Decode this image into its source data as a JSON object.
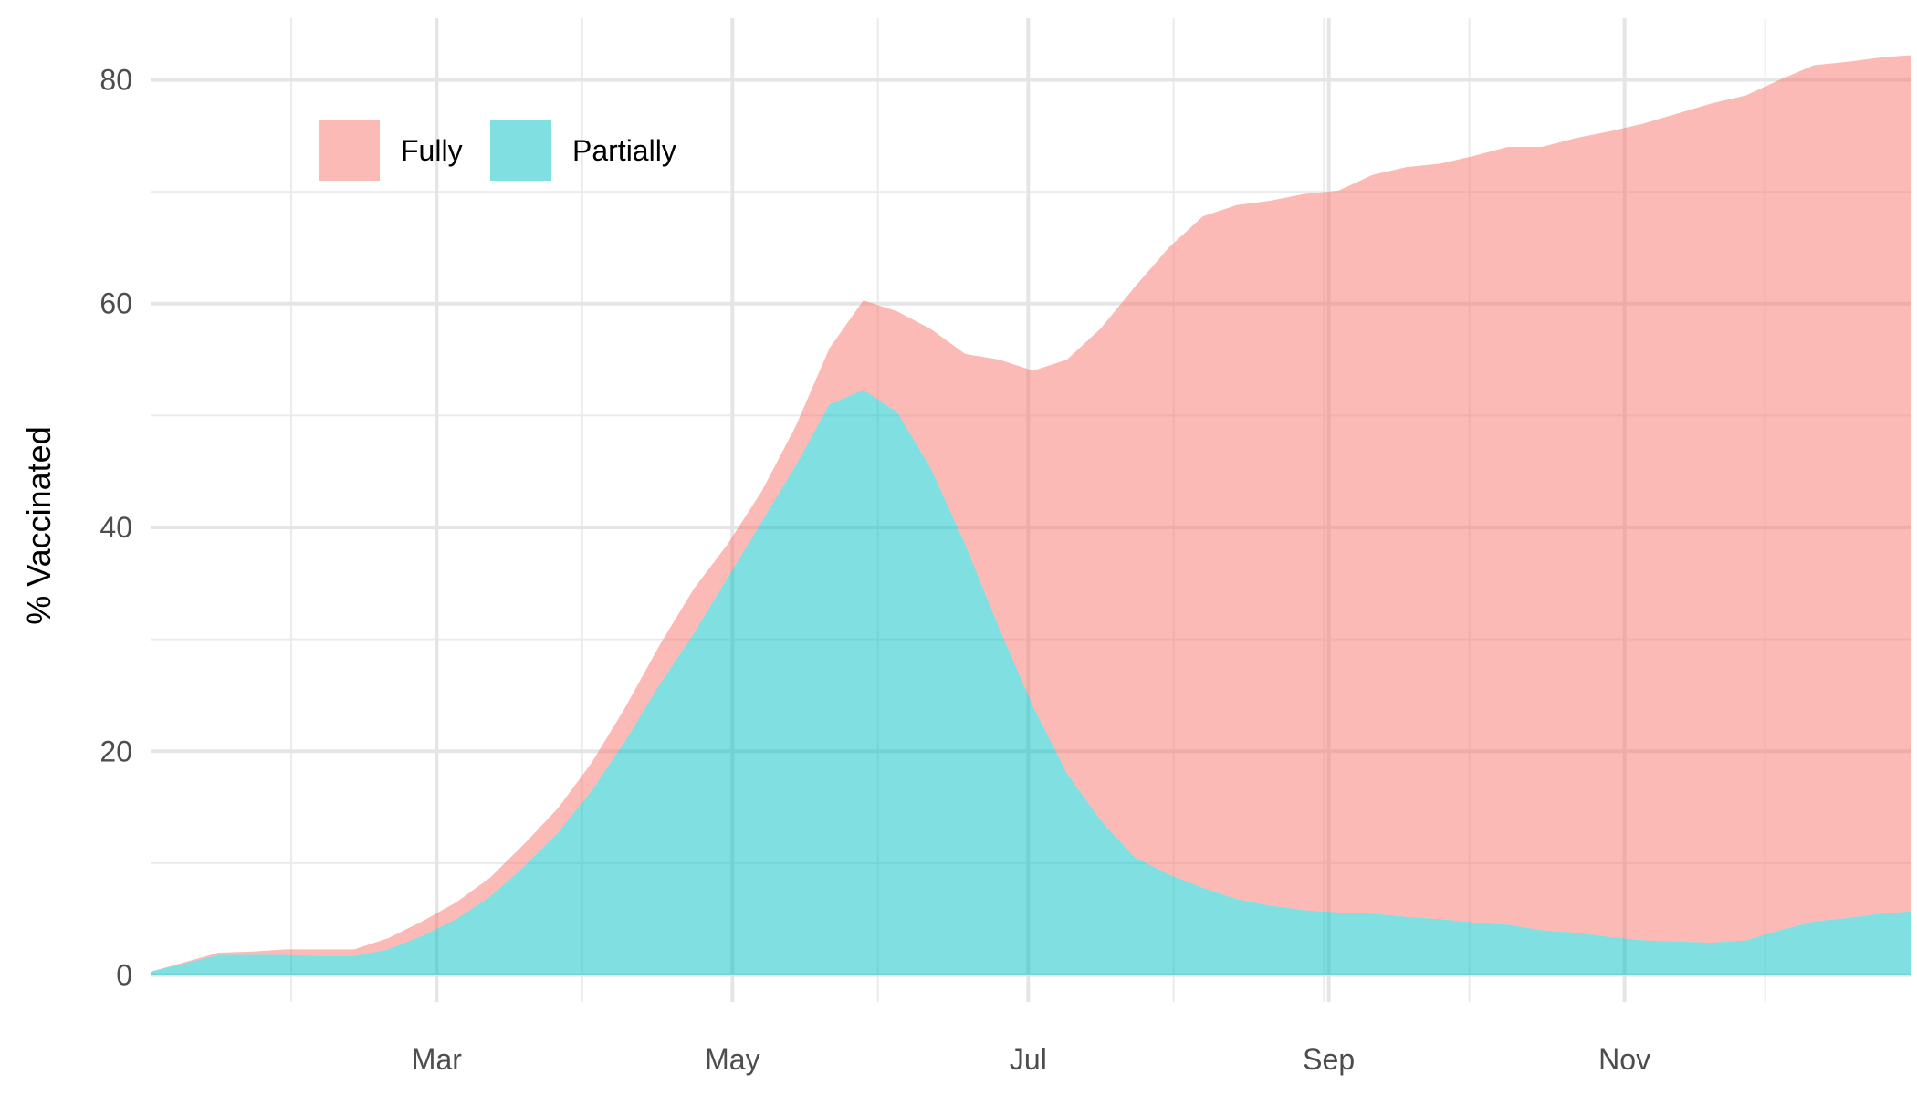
{
  "chart_data": {
    "type": "area",
    "stacked": true,
    "title": "",
    "xlabel": "",
    "ylabel": "% Vaccinated",
    "x_start": "2021-01-01",
    "x_end": "2021-12-30",
    "x_tick_labels": [
      {
        "label": "Mar",
        "date": "2021-03-01"
      },
      {
        "label": "May",
        "date": "2021-05-01"
      },
      {
        "label": "Jul",
        "date": "2021-07-01"
      },
      {
        "label": "Sep",
        "date": "2021-09-01"
      },
      {
        "label": "Nov",
        "date": "2021-11-01"
      }
    ],
    "x_minor_grid_dates": [
      "2021-01-30",
      "2021-03-31",
      "2021-05-31",
      "2021-07-31",
      "2021-08-31",
      "2021-09-30",
      "2021-11-30"
    ],
    "y_ticks": [
      0,
      20,
      40,
      60,
      80
    ],
    "ylim": [
      -2.4,
      85.5
    ],
    "grid": true,
    "legend_position": "top-left",
    "x": [
      "2021-01-01",
      "2021-01-15",
      "2021-01-22",
      "2021-01-29",
      "2021-02-05",
      "2021-02-12",
      "2021-02-19",
      "2021-02-26",
      "2021-03-05",
      "2021-03-12",
      "2021-03-19",
      "2021-03-26",
      "2021-04-02",
      "2021-04-09",
      "2021-04-16",
      "2021-04-23",
      "2021-04-30",
      "2021-05-07",
      "2021-05-14",
      "2021-05-21",
      "2021-05-28",
      "2021-06-04",
      "2021-06-11",
      "2021-06-18",
      "2021-06-25",
      "2021-07-02",
      "2021-07-09",
      "2021-07-16",
      "2021-07-23",
      "2021-07-30",
      "2021-08-06",
      "2021-08-13",
      "2021-08-20",
      "2021-08-27",
      "2021-09-03",
      "2021-09-10",
      "2021-09-17",
      "2021-09-24",
      "2021-10-01",
      "2021-10-08",
      "2021-10-15",
      "2021-10-22",
      "2021-10-29",
      "2021-11-05",
      "2021-11-12",
      "2021-11-19",
      "2021-11-26",
      "2021-12-03",
      "2021-12-10",
      "2021-12-17",
      "2021-12-24",
      "2021-12-30"
    ],
    "series": [
      {
        "name": "Fully",
        "color": "#F8766D",
        "values": [
          0,
          0.2,
          0.3,
          0.5,
          0.6,
          0.6,
          1.0,
          1.3,
          1.5,
          1.7,
          2.0,
          2.2,
          2.5,
          3.0,
          3.5,
          4.0,
          3.0,
          2.7,
          3.5,
          5.0,
          8.0,
          9.0,
          12.5,
          17.0,
          24.0,
          30.0,
          37.0,
          44.0,
          51.0,
          56.0,
          60.0,
          62.0,
          63.0,
          64.0,
          64.5,
          66.0,
          67.0,
          67.5,
          68.5,
          69.5,
          70.0,
          71.0,
          72.0,
          73.0,
          74.0,
          75.0,
          75.5,
          76.0,
          76.5,
          76.5,
          76.5,
          76.5
        ]
      },
      {
        "name": "Partially",
        "color": "#00BFC4",
        "values": [
          0.3,
          1.8,
          1.8,
          1.8,
          1.7,
          1.7,
          2.3,
          3.5,
          5.0,
          7.0,
          9.7,
          12.7,
          16.5,
          21.0,
          26.0,
          30.5,
          35.5,
          40.5,
          45.5,
          51.0,
          52.3,
          50.3,
          45.2,
          38.5,
          31.0,
          24.0,
          18.0,
          13.8,
          10.5,
          9.0,
          7.8,
          6.8,
          6.2,
          5.8,
          5.6,
          5.5,
          5.2,
          5.0,
          4.7,
          4.5,
          4.0,
          3.8,
          3.4,
          3.1,
          3.0,
          2.9,
          3.1,
          4.0,
          4.8,
          5.1,
          5.5,
          5.7
        ]
      }
    ]
  }
}
